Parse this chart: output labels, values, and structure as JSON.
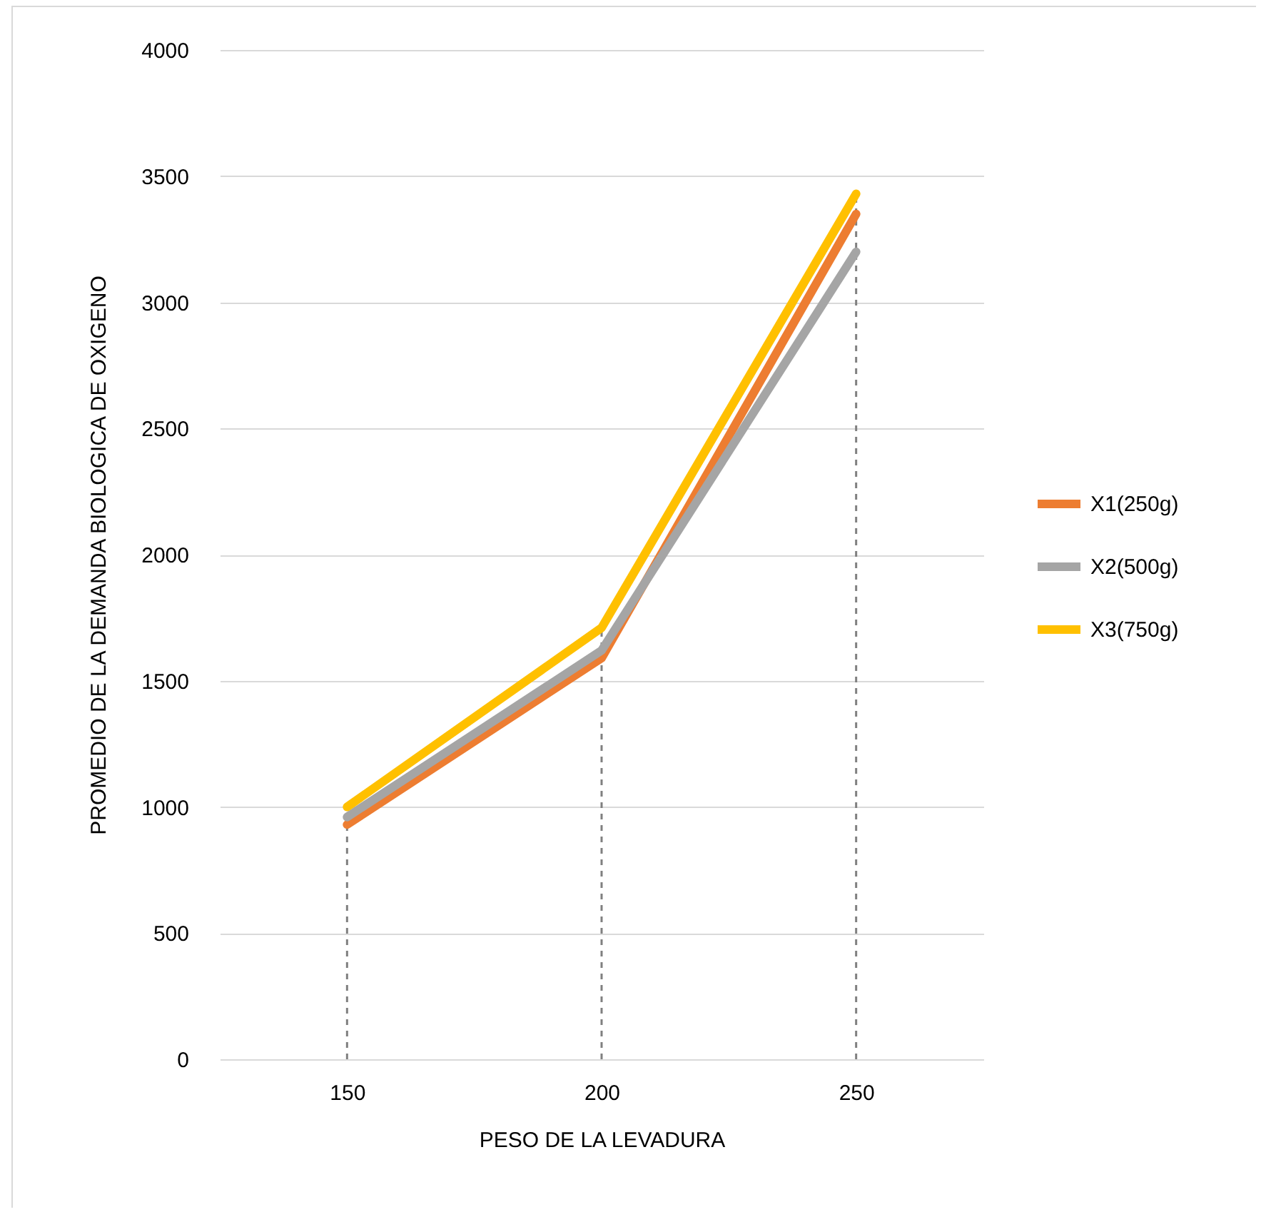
{
  "chart_data": {
    "type": "line",
    "xlabel": "PESO DE LA LEVADURA",
    "ylabel": "PROMEDIO DE LA DEMANDA BIOLOGICA DE OXIGENO",
    "categories": [
      "150",
      "200",
      "250"
    ],
    "series": [
      {
        "name": "X1(250g)",
        "color": "#ed7d31",
        "values": [
          930,
          1590,
          3350
        ]
      },
      {
        "name": "X2(500g)",
        "color": "#a5a5a5",
        "values": [
          960,
          1620,
          3200
        ]
      },
      {
        "name": "X3(750g)",
        "color": "#ffc000",
        "values": [
          1000,
          1710,
          3430
        ]
      }
    ],
    "ylim": [
      0,
      4000
    ],
    "yticks": [
      0,
      500,
      1000,
      1500,
      2000,
      2500,
      3000,
      3500,
      4000
    ],
    "grid": "y",
    "legend": "right",
    "marker": "none",
    "line_style": "solid",
    "ref_lines": [
      {
        "axis": "x",
        "value": "150",
        "color": "#808080",
        "line_style": "dashed"
      },
      {
        "axis": "x",
        "value": "200",
        "color": "#808080",
        "line_style": "dashed"
      },
      {
        "axis": "x",
        "value": "250",
        "color": "#808080",
        "line_style": "dashed"
      }
    ]
  }
}
